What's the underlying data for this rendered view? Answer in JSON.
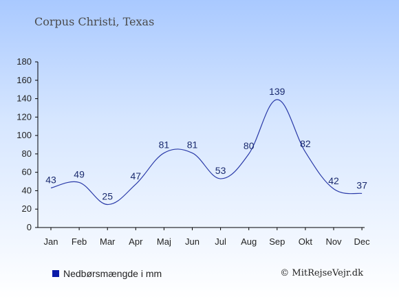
{
  "title": "Corpus Christi, Texas",
  "legend": {
    "label": "Nedbørsmængde i mm",
    "color": "#0a1aa8"
  },
  "credit": "© MitRejseVejr.dk",
  "chart_data": {
    "type": "line",
    "title": "Corpus Christi, Texas",
    "categories": [
      "Jan",
      "Feb",
      "Mar",
      "Apr",
      "Maj",
      "Jun",
      "Jul",
      "Aug",
      "Sep",
      "Okt",
      "Nov",
      "Dec"
    ],
    "series": [
      {
        "name": "Nedbørsmængde i mm",
        "values": [
          43,
          49,
          25,
          47,
          81,
          81,
          53,
          80,
          139,
          82,
          42,
          37
        ],
        "color": "#2a3aa8"
      }
    ],
    "yticks": [
      0,
      20,
      40,
      60,
      80,
      100,
      120,
      140,
      160,
      180
    ],
    "ylim": [
      0,
      180
    ],
    "grid": false,
    "legend_position": "bottom-left"
  }
}
